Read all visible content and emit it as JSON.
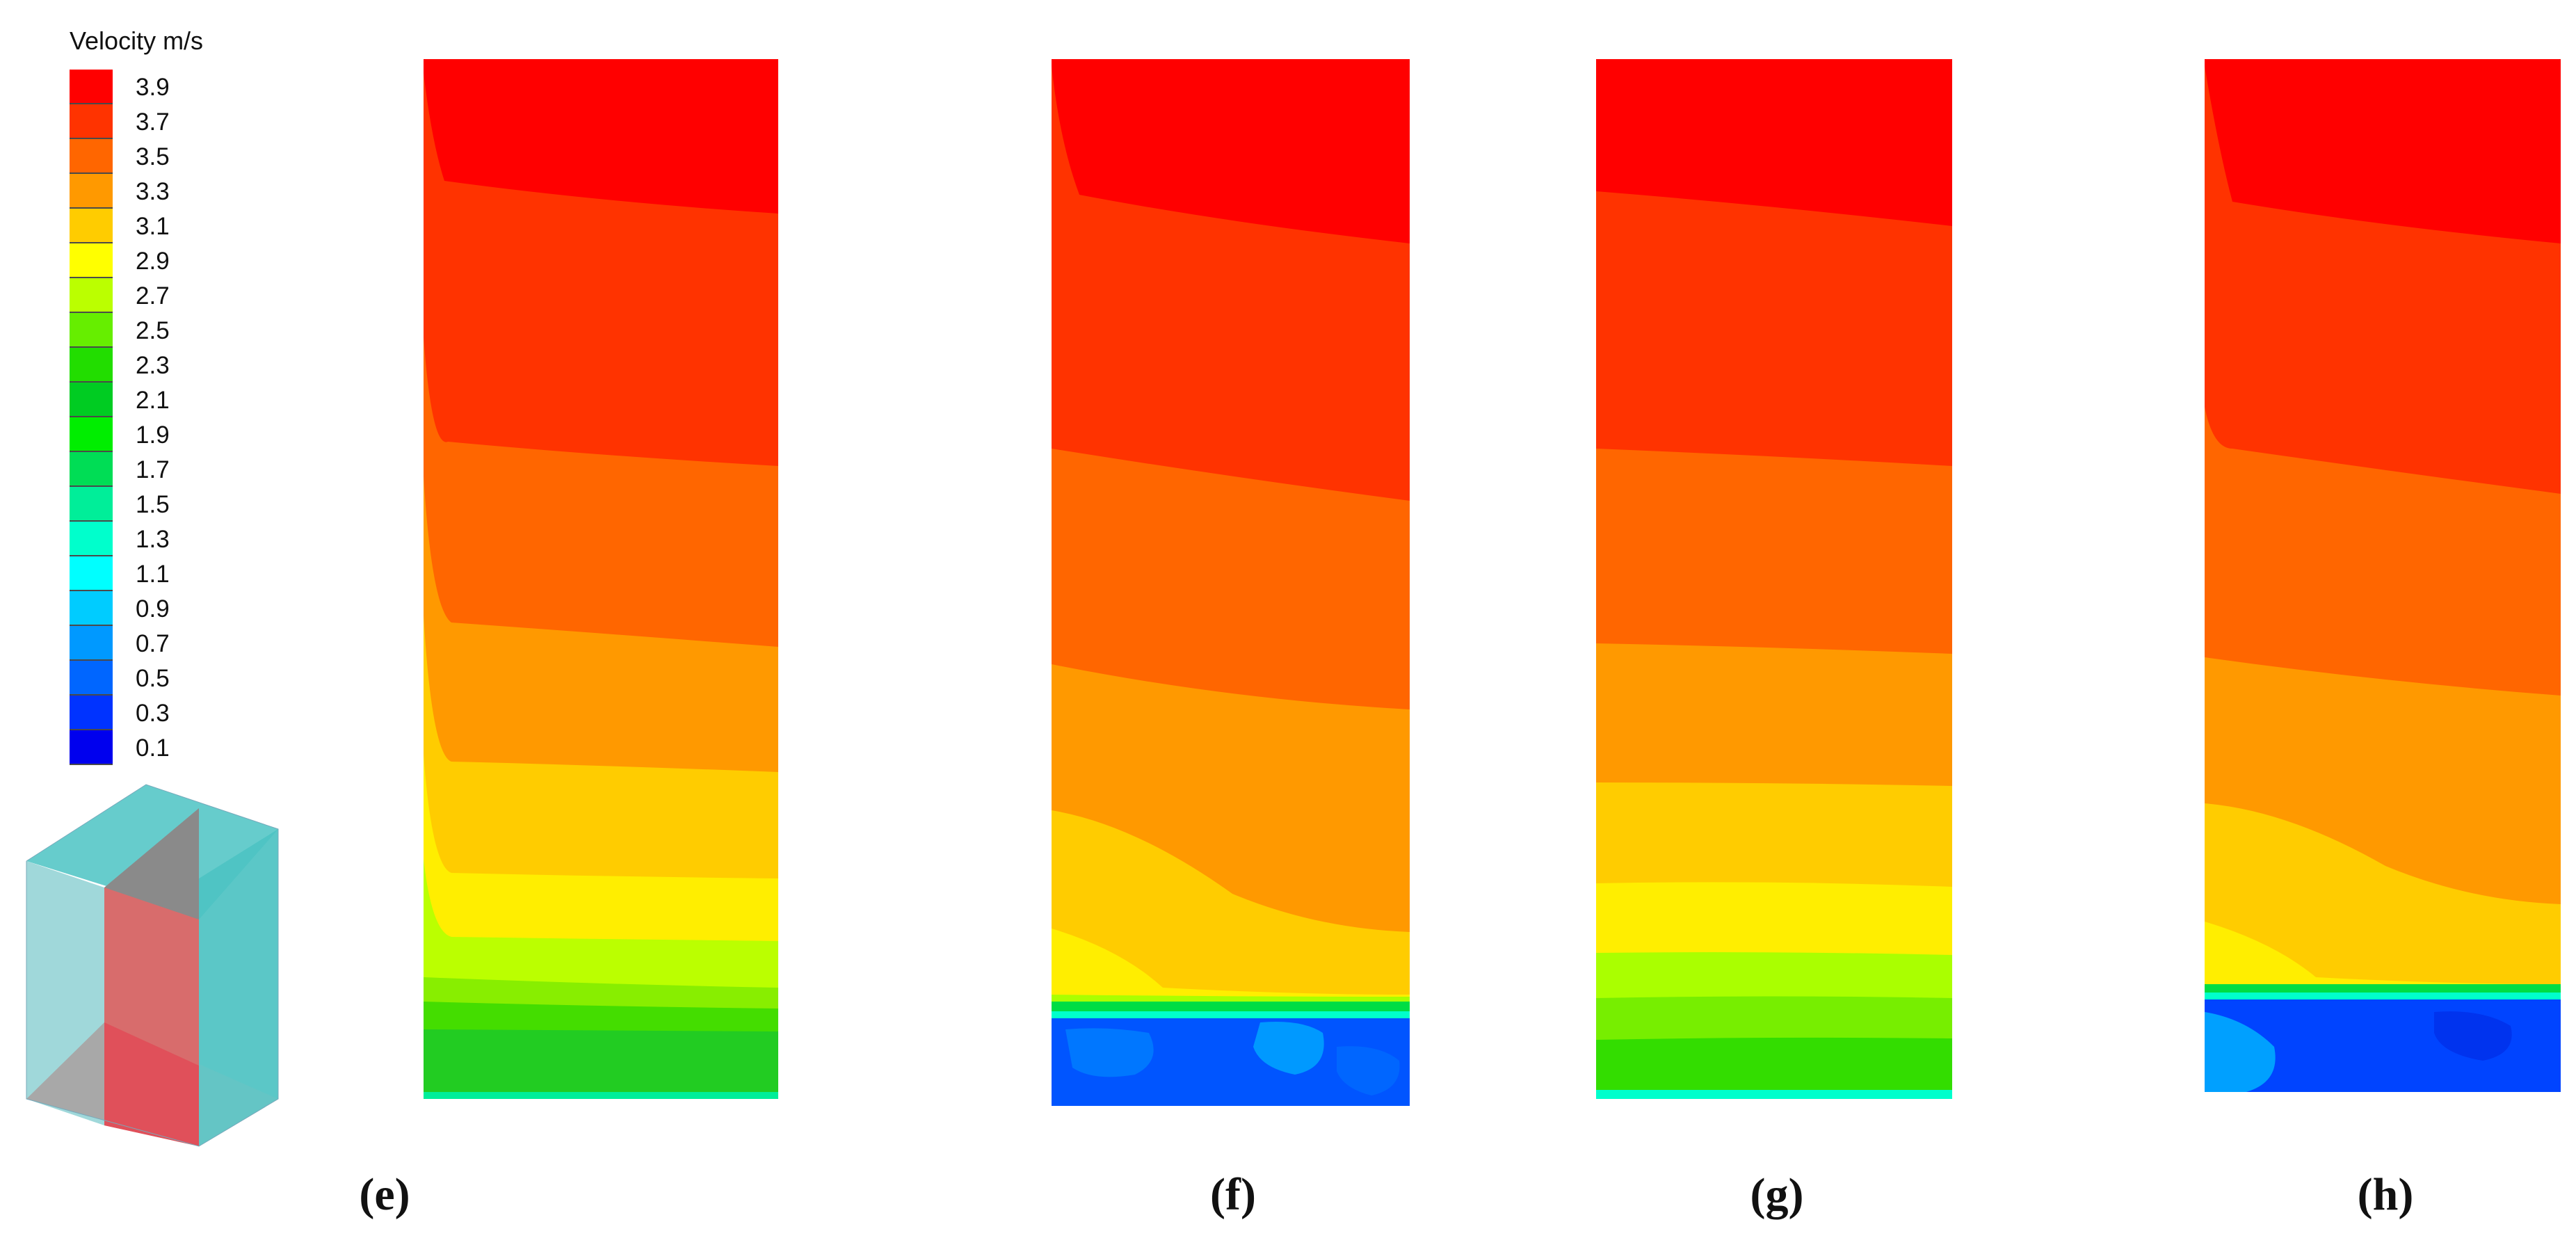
{
  "legend": {
    "title": "Velocity m/s",
    "ticks": [
      "3.9",
      "3.7",
      "3.5",
      "3.3",
      "3.1",
      "2.9",
      "2.7",
      "2.5",
      "2.3",
      "2.1",
      "1.9",
      "1.7",
      "1.5",
      "1.3",
      "1.1",
      "0.9",
      "0.7",
      "0.5",
      "0.3",
      "0.1"
    ],
    "colors": [
      "#ff0000",
      "#ff3300",
      "#ff6600",
      "#ff9900",
      "#ffcc00",
      "#ffff00",
      "#bbff00",
      "#66ee00",
      "#22dd00",
      "#00cc22",
      "#00ee00",
      "#00dd55",
      "#00ee99",
      "#00ffcc",
      "#00ffff",
      "#00ccff",
      "#0099ff",
      "#0066ff",
      "#0033ff",
      "#0000ee"
    ]
  },
  "panels": [
    {
      "label": "(e)",
      "caption_pre": "(",
      "caption_letter": "e",
      "caption_post": ")"
    },
    {
      "label": "(f)",
      "caption_pre": "(",
      "caption_letter": "f",
      "caption_post": ")"
    },
    {
      "label": "(g)",
      "caption_pre": "(",
      "caption_letter": "g",
      "caption_post": ")"
    },
    {
      "label": "(h)",
      "caption_pre": "(",
      "caption_letter": "h",
      "caption_post": ")"
    }
  ],
  "icon": "3d-box-schematic-icon"
}
